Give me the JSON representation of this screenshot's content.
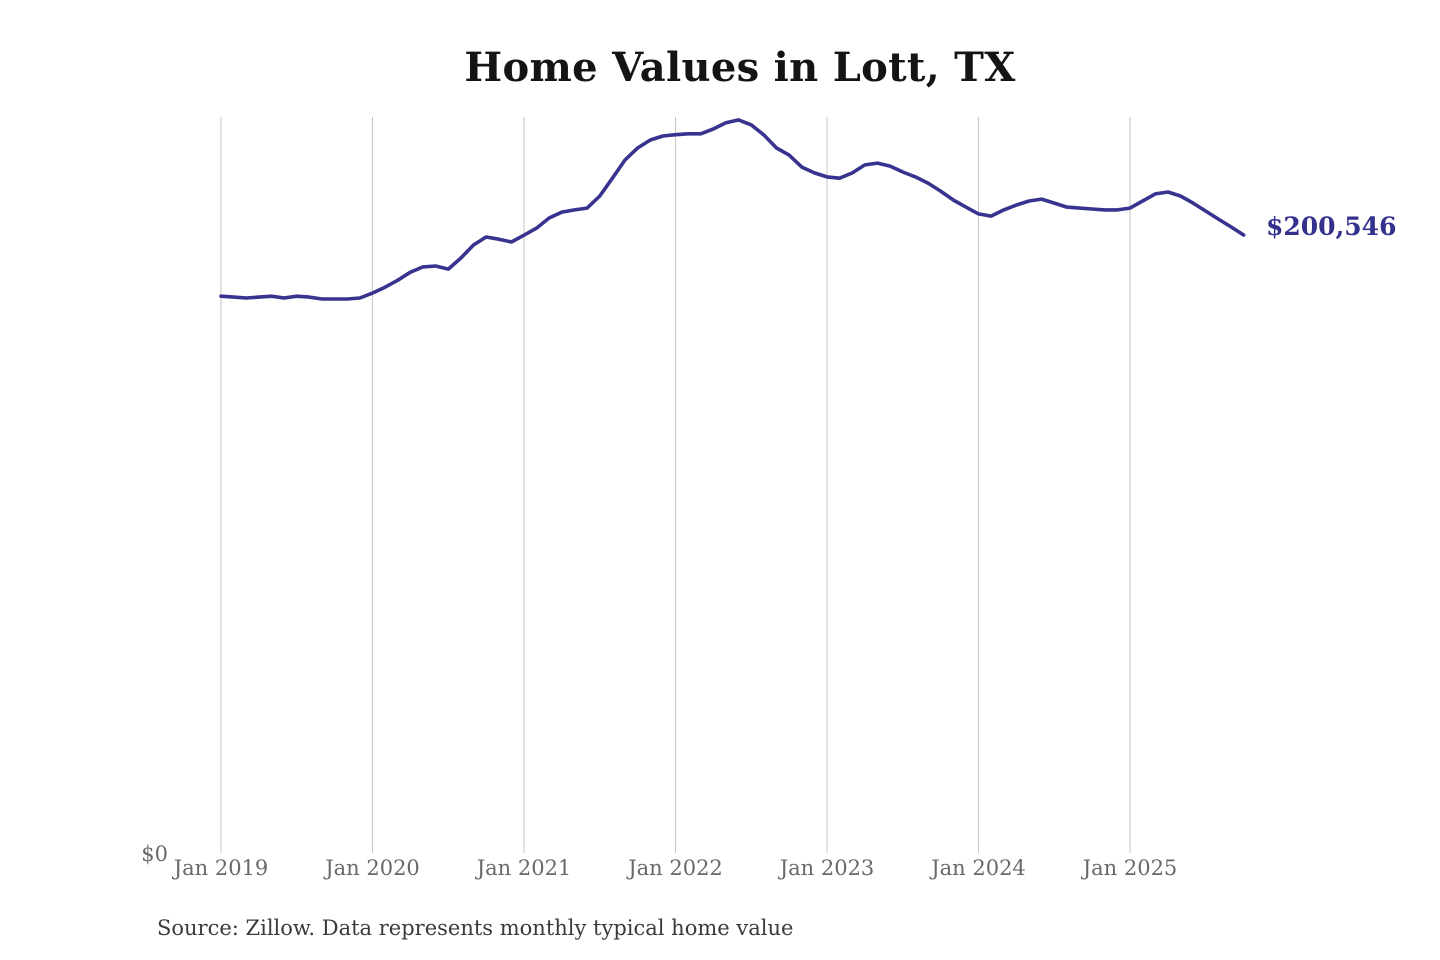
{
  "chart": {
    "title": "Home Values in Lott, TX",
    "end_label": "$200,546",
    "y_zero_label": "$0",
    "source": "Source: Zillow. Data represents monthly typical home value"
  },
  "chart_data": {
    "type": "line",
    "title": "Home Values in Lott, TX",
    "series_name": "Monthly typical home value",
    "x_start": "2019-01",
    "x_freq": "monthly",
    "x_tick_labels": [
      "Jan 2019",
      "Jan 2020",
      "Jan 2021",
      "Jan 2022",
      "Jan 2023",
      "Jan 2024",
      "Jan 2025"
    ],
    "x_tick_month_index": [
      0,
      12,
      24,
      36,
      48,
      60,
      72
    ],
    "ylim": [
      0,
      238850
    ],
    "y_zero_label": "$0",
    "last_value": 200546,
    "last_value_label": "$200,546",
    "grid": "vertical-only",
    "legend": "none",
    "line_color": "#37338f",
    "gridline_color": "#c7c7c7",
    "label_color": "#34308d",
    "axis_text_color": "#696969",
    "values": [
      180700,
      180400,
      180100,
      180400,
      180700,
      180100,
      180700,
      180400,
      179800,
      179800,
      179800,
      180100,
      181700,
      183600,
      185900,
      188500,
      190200,
      190500,
      189500,
      193100,
      197300,
      199900,
      199200,
      198300,
      200500,
      202800,
      206100,
      208000,
      208700,
      209300,
      213200,
      219000,
      224900,
      228800,
      231400,
      232700,
      233100,
      233400,
      233400,
      235000,
      237000,
      237900,
      236300,
      233000,
      228800,
      226500,
      222600,
      220700,
      219400,
      219000,
      220700,
      223300,
      223900,
      222900,
      221000,
      219400,
      217400,
      214800,
      211900,
      209600,
      207400,
      206700,
      208700,
      210300,
      211600,
      212200,
      210900,
      209600,
      209300,
      209000,
      208700,
      208700,
      209300,
      211600,
      213900,
      214500,
      213200,
      210900,
      208300,
      205700,
      203200,
      200546
    ]
  }
}
